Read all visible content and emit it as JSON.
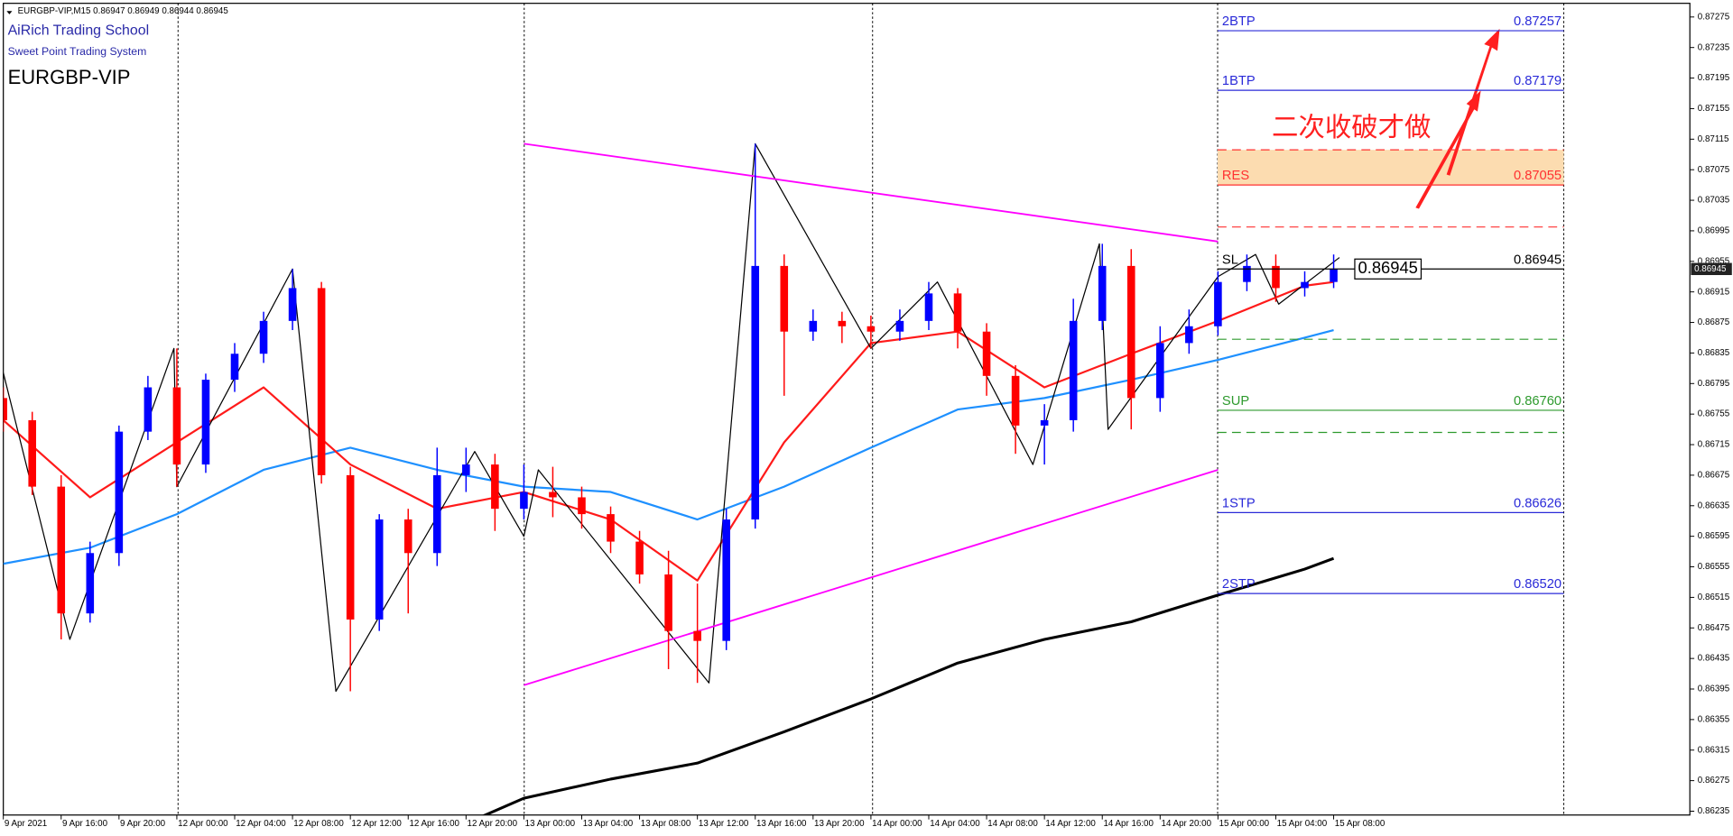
{
  "chart_data": {
    "type": "candlestick",
    "header": "EURGBP-VIP,M15  0.86947 0.86949 0.86944 0.86945",
    "title": "AiRich Trading School",
    "subtitle": "Sweet Point Trading System",
    "symbol": "EURGBP-VIP",
    "annotation": "二次收破才做",
    "categories": [
      "9 Apr 2021",
      "9 Apr 16:00",
      "9 Apr 20:00",
      "12 Apr 00:00",
      "12 Apr 04:00",
      "12 Apr 08:00",
      "12 Apr 12:00",
      "12 Apr 16:00",
      "12 Apr 20:00",
      "13 Apr 00:00",
      "13 Apr 04:00",
      "13 Apr 08:00",
      "13 Apr 12:00",
      "13 Apr 16:00",
      "13 Apr 20:00",
      "14 Apr 00:00",
      "14 Apr 04:00",
      "14 Apr 08:00",
      "14 Apr 12:00",
      "14 Apr 16:00",
      "14 Apr 20:00",
      "15 Apr 00:00",
      "15 Apr 04:00",
      "15 Apr 08:00"
    ],
    "ylim": [
      0.8623,
      0.8729
    ],
    "yticks": [
      0.87275,
      0.87235,
      0.87195,
      0.87155,
      0.87115,
      0.87075,
      0.87035,
      0.86995,
      0.86955,
      0.86915,
      0.86875,
      0.86835,
      0.86795,
      0.86755,
      0.86715,
      0.86675,
      0.86635,
      0.86595,
      0.86555,
      0.86515,
      0.86475,
      0.86435,
      0.86395,
      0.86355,
      0.86315,
      0.86275,
      0.86235
    ],
    "up_color": "#0000ff",
    "down_color": "#ff0000",
    "ohlc": [
      [
        0.86776,
        0.8679,
        0.86732,
        0.86747
      ],
      [
        0.86747,
        0.86758,
        0.86649,
        0.8666
      ],
      [
        0.8666,
        0.86675,
        0.8646,
        0.86494
      ],
      [
        0.86494,
        0.86588,
        0.86482,
        0.86573
      ],
      [
        0.86573,
        0.8674,
        0.86556,
        0.86732
      ],
      [
        0.86732,
        0.86805,
        0.86721,
        0.8679
      ],
      [
        0.8679,
        0.86841,
        0.8666,
        0.86689
      ],
      [
        0.86689,
        0.86808,
        0.86678,
        0.868
      ],
      [
        0.868,
        0.86848,
        0.86784,
        0.86834
      ],
      [
        0.86834,
        0.86889,
        0.86822,
        0.86877
      ],
      [
        0.86877,
        0.86945,
        0.86865,
        0.8692
      ],
      [
        0.8692,
        0.86928,
        0.86664,
        0.86675
      ],
      [
        0.86675,
        0.86686,
        0.86392,
        0.86486
      ],
      [
        0.86486,
        0.86624,
        0.86471,
        0.86617
      ],
      [
        0.86617,
        0.86631,
        0.86494,
        0.86573
      ],
      [
        0.86573,
        0.86711,
        0.86556,
        0.86675
      ],
      [
        0.86675,
        0.86711,
        0.86653,
        0.86689
      ],
      [
        0.86689,
        0.86703,
        0.86602,
        0.86631
      ],
      [
        0.86631,
        0.86689,
        0.86617,
        0.86653
      ],
      [
        0.86653,
        0.86686,
        0.8662,
        0.86646
      ],
      [
        0.86646,
        0.8666,
        0.86605,
        0.86624
      ],
      [
        0.86624,
        0.86634,
        0.86573,
        0.86588
      ],
      [
        0.86588,
        0.86602,
        0.86533,
        0.86545
      ],
      [
        0.86545,
        0.86576,
        0.86421,
        0.86471
      ],
      [
        0.86471,
        0.86533,
        0.86403,
        0.86458
      ],
      [
        0.86458,
        0.86631,
        0.86446,
        0.86617
      ],
      [
        0.86617,
        0.87109,
        0.86605,
        0.86949
      ],
      [
        0.86949,
        0.86964,
        0.86779,
        0.86863
      ],
      [
        0.86863,
        0.86892,
        0.86851,
        0.86877
      ],
      [
        0.86877,
        0.86889,
        0.86848,
        0.8687
      ],
      [
        0.8687,
        0.86884,
        0.86841,
        0.86863
      ],
      [
        0.86863,
        0.86892,
        0.86851,
        0.86877
      ],
      [
        0.86877,
        0.86928,
        0.86865,
        0.86913
      ],
      [
        0.86913,
        0.8692,
        0.86841,
        0.86863
      ],
      [
        0.86863,
        0.86874,
        0.86779,
        0.86805
      ],
      [
        0.86805,
        0.86819,
        0.86703,
        0.8674
      ],
      [
        0.8674,
        0.86768,
        0.86689,
        0.86747
      ],
      [
        0.86747,
        0.86906,
        0.86732,
        0.86877
      ],
      [
        0.86877,
        0.86978,
        0.86865,
        0.86949
      ],
      [
        0.86949,
        0.86971,
        0.86735,
        0.86776
      ],
      [
        0.86776,
        0.8687,
        0.86758,
        0.86848
      ],
      [
        0.86848,
        0.86892,
        0.86834,
        0.8687
      ],
      [
        0.8687,
        0.86942,
        0.86858,
        0.86928
      ],
      [
        0.86928,
        0.86964,
        0.86916,
        0.86949
      ],
      [
        0.86949,
        0.86964,
        0.86902,
        0.8692
      ],
      [
        0.8692,
        0.86942,
        0.86909,
        0.86928
      ],
      [
        0.86928,
        0.86964,
        0.8692,
        0.86945
      ]
    ],
    "lines": [
      {
        "color": "#000000",
        "width": 2.5,
        "x": [
          16,
          18,
          21,
          24,
          27,
          30,
          33,
          36,
          39,
          42,
          45,
          46
        ],
        "values": [
          0.86219,
          0.86252,
          0.86277,
          0.86298,
          0.86339,
          0.86382,
          0.86429,
          0.8646,
          0.86483,
          0.86518,
          0.86552,
          0.86566
        ]
      },
      {
        "color": "#1e90ff",
        "width": 1.8,
        "x": [
          0,
          3,
          6,
          9,
          12,
          15,
          18,
          21,
          24,
          27,
          30,
          33,
          36,
          39,
          42,
          45,
          46
        ],
        "values": [
          0.86559,
          0.8658,
          0.86624,
          0.86682,
          0.86711,
          0.86682,
          0.8666,
          0.86653,
          0.86617,
          0.8666,
          0.86711,
          0.86761,
          0.86776,
          0.868,
          0.86826,
          0.86855,
          0.86865
        ]
      },
      {
        "color": "#ff1a1a",
        "width": 1.8,
        "x": [
          0,
          3,
          6,
          9,
          12,
          15,
          18,
          21,
          24,
          27,
          30,
          33,
          36,
          39,
          42,
          45,
          46
        ],
        "values": [
          0.86747,
          0.86646,
          0.86718,
          0.8679,
          0.86689,
          0.86631,
          0.86653,
          0.86617,
          0.86537,
          0.86718,
          0.86848,
          0.86863,
          0.8679,
          0.86834,
          0.86877,
          0.86923,
          0.86928
        ]
      },
      {
        "color": "#000000",
        "width": 1,
        "x": [
          0,
          2.3,
          5.9,
          6.0,
          10.0,
          11.5,
          16.3,
          18.0,
          18.5,
          24.4,
          26.0,
          30.0,
          32.3,
          35.6,
          37.9,
          38.2,
          42.0,
          43.3,
          44.1,
          46.2
        ],
        "values": [
          0.86809,
          0.8646,
          0.86841,
          0.8666,
          0.86945,
          0.86392,
          0.86706,
          0.86595,
          0.86682,
          0.86403,
          0.87109,
          0.86841,
          0.86928,
          0.86689,
          0.86978,
          0.86735,
          0.86935,
          0.86964,
          0.86899,
          0.8696
        ]
      },
      {
        "color": "#ff00ff",
        "width": 1.5,
        "x": [
          18.0,
          42.0
        ],
        "values": [
          0.87109,
          0.86981
        ]
      },
      {
        "color": "#ff00ff",
        "width": 1.5,
        "x": [
          18.0,
          42.0
        ],
        "values": [
          0.864,
          0.86682
        ]
      }
    ],
    "zone": {
      "low": 0.87055,
      "high": 0.87101,
      "color": "#fcdcb0"
    },
    "levels": [
      {
        "label": "2BTP",
        "value": 0.87257,
        "color": "#2a2ad8",
        "style": "solid"
      },
      {
        "label": "1BTP",
        "value": 0.87179,
        "color": "#2a2ad8",
        "style": "solid"
      },
      {
        "value": 0.87101,
        "color": "#ff3030",
        "style": "dashed"
      },
      {
        "label": "RES",
        "value": 0.87055,
        "color": "#ff3030",
        "style": "solid"
      },
      {
        "value": 0.87,
        "color": "#ff3030",
        "style": "dashed"
      },
      {
        "label": "SL",
        "value": 0.86945,
        "color": "#000000",
        "style": "solid"
      },
      {
        "value": 0.86853,
        "color": "#2e9a2e",
        "style": "dashed"
      },
      {
        "label": "SUP",
        "value": 0.8676,
        "value_label": "0.86760",
        "color": "#2e9a2e",
        "style": "solid"
      },
      {
        "value": 0.86731,
        "color": "#2e9a2e",
        "style": "dashed"
      },
      {
        "label": "1STP",
        "value": 0.86626,
        "color": "#2a2ad8",
        "style": "solid"
      },
      {
        "label": "2STP",
        "value": 0.8652,
        "value_label": "0.86520",
        "color": "#2a2ad8",
        "style": "solid"
      }
    ],
    "last": 0.86945
  }
}
